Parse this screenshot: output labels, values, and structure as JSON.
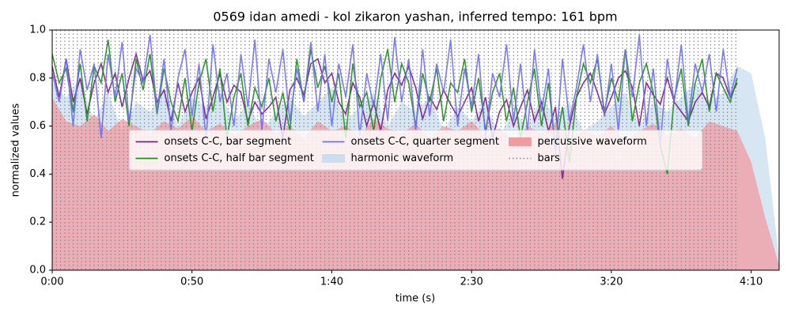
{
  "chart_data": {
    "type": "line",
    "title": "0569 idan amedi - kol zikaron yashan, inferred tempo: 161 bpm",
    "xlabel": "time (s)",
    "ylabel": "normalized values",
    "xlim": [
      0,
      260
    ],
    "ylim": [
      0,
      1
    ],
    "xticks": [
      {
        "value": 0,
        "label": "0:00"
      },
      {
        "value": 50,
        "label": "0:50"
      },
      {
        "value": 100,
        "label": "1:40"
      },
      {
        "value": 150,
        "label": "2:30"
      },
      {
        "value": 200,
        "label": "3:20"
      },
      {
        "value": 250,
        "label": "4:10"
      }
    ],
    "yticks": [
      {
        "value": 0,
        "label": "0.0"
      },
      0.2,
      0.4,
      0.6,
      0.8,
      {
        "value": 1,
        "label": "1.0"
      }
    ],
    "legend": "center",
    "series": [
      {
        "name": "onsets C-C, bar segment",
        "type": "line",
        "color": "#7b1f8a",
        "x": [
          0,
          2.5,
          5,
          7.5,
          10,
          12.5,
          15,
          17.5,
          20,
          22.5,
          25,
          27.5,
          30,
          32.5,
          35,
          37.5,
          40,
          42.5,
          45,
          47.5,
          50,
          52.5,
          55,
          57.5,
          60,
          62.5,
          65,
          67.5,
          70,
          72.5,
          75,
          77.5,
          80,
          82.5,
          85,
          87.5,
          90,
          92.5,
          95,
          97.5,
          100,
          102.5,
          105,
          107.5,
          110,
          112.5,
          115,
          117.5,
          120,
          122.5,
          125,
          127.5,
          130,
          132.5,
          135,
          137.5,
          140,
          142.5,
          145,
          147.5,
          150,
          152.5,
          155,
          157.5,
          160,
          162.5,
          165,
          167.5,
          170,
          172.5,
          175,
          177.5,
          180,
          182.5,
          185,
          187.5,
          190,
          192.5,
          195,
          197.5,
          200,
          202.5,
          205,
          207.5,
          210,
          212.5,
          215,
          217.5,
          220,
          222.5,
          225,
          227.5,
          230,
          232.5,
          235,
          237.5,
          240,
          242.5,
          245
        ],
        "values": [
          0.85,
          0.72,
          0.88,
          0.7,
          0.8,
          0.65,
          0.78,
          0.86,
          0.74,
          0.82,
          0.68,
          0.8,
          0.9,
          0.79,
          0.83,
          0.7,
          0.75,
          0.62,
          0.78,
          0.66,
          0.74,
          0.8,
          0.63,
          0.72,
          0.82,
          0.7,
          0.77,
          0.74,
          0.62,
          0.7,
          0.65,
          0.68,
          0.72,
          0.55,
          0.75,
          0.8,
          0.73,
          0.86,
          0.88,
          0.78,
          0.82,
          0.7,
          0.65,
          0.78,
          0.72,
          0.6,
          0.7,
          0.58,
          0.75,
          0.82,
          0.77,
          0.85,
          0.76,
          0.63,
          0.72,
          0.67,
          0.75,
          0.69,
          0.64,
          0.7,
          0.76,
          0.62,
          0.72,
          0.55,
          0.66,
          0.71,
          0.6,
          0.68,
          0.75,
          0.62,
          0.7,
          0.58,
          0.68,
          0.38,
          0.6,
          0.72,
          0.78,
          0.82,
          0.74,
          0.65,
          0.72,
          0.8,
          0.83,
          0.76,
          0.6,
          0.78,
          0.73,
          0.69,
          0.8,
          0.7,
          0.66,
          0.62,
          0.7,
          0.74,
          0.68,
          0.82,
          0.8,
          0.72,
          0.78
        ]
      },
      {
        "name": "onsets C-C, half bar segment",
        "type": "line",
        "color": "#1f8f1f",
        "x": [
          0,
          2.5,
          5,
          7.5,
          10,
          12.5,
          15,
          17.5,
          20,
          22.5,
          25,
          27.5,
          30,
          32.5,
          35,
          37.5,
          40,
          42.5,
          45,
          47.5,
          50,
          52.5,
          55,
          57.5,
          60,
          62.5,
          65,
          67.5,
          70,
          72.5,
          75,
          77.5,
          80,
          82.5,
          85,
          87.5,
          90,
          92.5,
          95,
          97.5,
          100,
          102.5,
          105,
          107.5,
          110,
          112.5,
          115,
          117.5,
          120,
          122.5,
          125,
          127.5,
          130,
          132.5,
          135,
          137.5,
          140,
          142.5,
          145,
          147.5,
          150,
          152.5,
          155,
          157.5,
          160,
          162.5,
          165,
          167.5,
          170,
          172.5,
          175,
          177.5,
          180,
          182.5,
          185,
          187.5,
          190,
          192.5,
          195,
          197.5,
          200,
          202.5,
          205,
          207.5,
          210,
          212.5,
          215,
          217.5,
          220,
          222.5,
          225,
          227.5,
          230,
          232.5,
          235,
          237.5,
          240,
          242.5,
          245
        ],
        "values": [
          0.9,
          0.78,
          0.84,
          0.66,
          0.86,
          0.62,
          0.85,
          0.78,
          0.96,
          0.7,
          0.82,
          0.6,
          0.88,
          0.75,
          0.9,
          0.65,
          0.84,
          0.7,
          0.62,
          0.8,
          0.58,
          0.78,
          0.88,
          0.66,
          0.84,
          0.55,
          0.72,
          0.82,
          0.6,
          0.76,
          0.68,
          0.8,
          0.62,
          0.74,
          0.58,
          0.88,
          0.7,
          0.92,
          0.76,
          0.85,
          0.7,
          0.82,
          0.55,
          0.86,
          0.68,
          0.74,
          0.58,
          0.8,
          0.92,
          0.7,
          0.86,
          0.78,
          0.6,
          0.82,
          0.7,
          0.84,
          0.62,
          0.78,
          0.74,
          0.88,
          0.66,
          0.8,
          0.58,
          0.74,
          0.82,
          0.62,
          0.76,
          0.55,
          0.7,
          0.84,
          0.6,
          0.78,
          0.5,
          0.68,
          0.45,
          0.72,
          0.86,
          0.78,
          0.88,
          0.66,
          0.8,
          0.7,
          0.92,
          0.62,
          0.78,
          0.86,
          0.74,
          0.52,
          0.4,
          0.72,
          0.84,
          0.6,
          0.78,
          0.88,
          0.66,
          0.82,
          0.76,
          0.7,
          0.8
        ]
      },
      {
        "name": "onsets C-C, quarter segment",
        "type": "line",
        "color": "#6f6ff5",
        "x": [
          0,
          2.5,
          5,
          7.5,
          10,
          12.5,
          15,
          17.5,
          20,
          22.5,
          25,
          27.5,
          30,
          32.5,
          35,
          37.5,
          40,
          42.5,
          45,
          47.5,
          50,
          52.5,
          55,
          57.5,
          60,
          62.5,
          65,
          67.5,
          70,
          72.5,
          75,
          77.5,
          80,
          82.5,
          85,
          87.5,
          90,
          92.5,
          95,
          97.5,
          100,
          102.5,
          105,
          107.5,
          110,
          112.5,
          115,
          117.5,
          120,
          122.5,
          125,
          127.5,
          130,
          132.5,
          135,
          137.5,
          140,
          142.5,
          145,
          147.5,
          150,
          152.5,
          155,
          157.5,
          160,
          162.5,
          165,
          167.5,
          170,
          172.5,
          175,
          177.5,
          180,
          182.5,
          185,
          187.5,
          190,
          192.5,
          195,
          197.5,
          200,
          202.5,
          205,
          207.5,
          210,
          212.5,
          215,
          217.5,
          220,
          222.5,
          225,
          227.5,
          230,
          232.5,
          235,
          237.5,
          240,
          242.5,
          245
        ],
        "values": [
          0.82,
          0.7,
          0.88,
          0.6,
          0.92,
          0.75,
          0.86,
          0.55,
          0.9,
          0.72,
          0.95,
          0.62,
          0.84,
          0.78,
          0.98,
          0.66,
          0.88,
          0.58,
          0.8,
          0.92,
          0.64,
          0.86,
          0.55,
          0.94,
          0.7,
          0.82,
          0.6,
          0.9,
          0.68,
          0.96,
          0.58,
          0.88,
          0.74,
          0.92,
          0.62,
          0.84,
          0.7,
          0.95,
          0.66,
          0.9,
          0.6,
          0.86,
          0.72,
          0.94,
          0.56,
          0.82,
          0.68,
          0.9,
          0.62,
          0.97,
          0.7,
          0.88,
          0.58,
          0.92,
          0.64,
          0.86,
          0.74,
          0.96,
          0.6,
          0.84,
          0.68,
          0.9,
          0.55,
          0.82,
          0.72,
          0.94,
          0.62,
          0.86,
          0.58,
          0.92,
          0.66,
          0.84,
          0.48,
          0.88,
          0.62,
          0.76,
          0.94,
          0.7,
          0.9,
          0.64,
          0.86,
          0.58,
          0.92,
          0.72,
          0.98,
          0.6,
          0.84,
          0.52,
          0.88,
          0.7,
          0.94,
          0.62,
          0.86,
          0.74,
          0.9,
          0.66,
          0.92,
          0.72,
          0.84
        ]
      },
      {
        "name": "harmonic waveform",
        "type": "area",
        "color": "#c9deef",
        "x": [
          0,
          5,
          10,
          15,
          20,
          25,
          30,
          35,
          40,
          45,
          50,
          55,
          60,
          65,
          70,
          75,
          80,
          85,
          90,
          95,
          100,
          105,
          110,
          115,
          120,
          125,
          130,
          135,
          140,
          145,
          150,
          155,
          160,
          165,
          170,
          175,
          180,
          185,
          190,
          195,
          200,
          205,
          210,
          215,
          220,
          225,
          230,
          235,
          240,
          245,
          250,
          255,
          260
        ],
        "values": [
          0.78,
          0.72,
          0.8,
          0.62,
          0.74,
          0.58,
          0.7,
          0.66,
          0.76,
          0.6,
          0.72,
          0.68,
          0.74,
          0.62,
          0.7,
          0.58,
          0.66,
          0.72,
          0.64,
          0.7,
          0.76,
          0.62,
          0.68,
          0.74,
          0.6,
          0.7,
          0.66,
          0.72,
          0.58,
          0.68,
          0.62,
          0.7,
          0.56,
          0.66,
          0.6,
          0.72,
          0.64,
          0.7,
          0.58,
          0.62,
          0.68,
          0.74,
          0.6,
          0.7,
          0.66,
          0.72,
          0.78,
          0.7,
          0.74,
          0.85,
          0.82,
          0.55,
          0.05
        ]
      },
      {
        "name": "percussive waveform",
        "type": "area",
        "color": "#f19aa1",
        "x": [
          0,
          5,
          10,
          15,
          20,
          25,
          30,
          35,
          40,
          45,
          50,
          55,
          60,
          65,
          70,
          75,
          80,
          85,
          90,
          95,
          100,
          105,
          110,
          115,
          120,
          125,
          130,
          135,
          140,
          145,
          150,
          155,
          160,
          165,
          170,
          175,
          180,
          185,
          190,
          195,
          200,
          205,
          210,
          215,
          220,
          225,
          230,
          235,
          240,
          245,
          250,
          255,
          260
        ],
        "values": [
          0.72,
          0.62,
          0.6,
          0.65,
          0.58,
          0.63,
          0.6,
          0.57,
          0.62,
          0.59,
          0.64,
          0.58,
          0.61,
          0.56,
          0.6,
          0.63,
          0.57,
          0.6,
          0.55,
          0.62,
          0.58,
          0.6,
          0.56,
          0.63,
          0.59,
          0.57,
          0.61,
          0.55,
          0.6,
          0.58,
          0.62,
          0.56,
          0.59,
          0.54,
          0.6,
          0.57,
          0.61,
          0.55,
          0.58,
          0.56,
          0.6,
          0.54,
          0.58,
          0.61,
          0.56,
          0.59,
          0.55,
          0.62,
          0.6,
          0.58,
          0.45,
          0.22,
          0.02
        ]
      },
      {
        "name": "bars",
        "type": "vline",
        "color": "#888888",
        "x": [
          0,
          1.5,
          3,
          4.5,
          6,
          7.5,
          9,
          10.5,
          12,
          13.5,
          15,
          16.5,
          18,
          19.5,
          21,
          22.5,
          24,
          25.5,
          27,
          28.5,
          30,
          31.5,
          33,
          34.5,
          36,
          37.5,
          39,
          40.5,
          42,
          43.5,
          45,
          46.5,
          48,
          49.5,
          51,
          52.5,
          54,
          55.5,
          57,
          58.5,
          60,
          61.5,
          63,
          64.5,
          66,
          67.5,
          69,
          70.5,
          72,
          73.5,
          75,
          76.5,
          78,
          79.5,
          81,
          82.5,
          84,
          85.5,
          87,
          88.5,
          90,
          91.5,
          93,
          94.5,
          96,
          97.5,
          99,
          100.5,
          102,
          103.5,
          105,
          106.5,
          108,
          109.5,
          111,
          112.5,
          114,
          115.5,
          117,
          118.5,
          120,
          121.5,
          123,
          124.5,
          126,
          127.5,
          129,
          130.5,
          132,
          133.5,
          135,
          136.5,
          138,
          139.5,
          141,
          142.5,
          144,
          145.5,
          147,
          148.5,
          150,
          151.5,
          153,
          154.5,
          156,
          157.5,
          159,
          160.5,
          162,
          163.5,
          165,
          166.5,
          168,
          169.5,
          171,
          172.5,
          174,
          175.5,
          177,
          178.5,
          180,
          181.5,
          183,
          184.5,
          186,
          187.5,
          189,
          190.5,
          192,
          193.5,
          195,
          196.5,
          198,
          199.5,
          201,
          202.5,
          204,
          205.5,
          207,
          208.5,
          210,
          211.5,
          213,
          214.5,
          216,
          217.5,
          219,
          220.5,
          222,
          223.5,
          225,
          226.5,
          228,
          229.5,
          231,
          232.5,
          234,
          235.5,
          237,
          238.5,
          240,
          241.5,
          243,
          244.5
        ]
      }
    ]
  }
}
